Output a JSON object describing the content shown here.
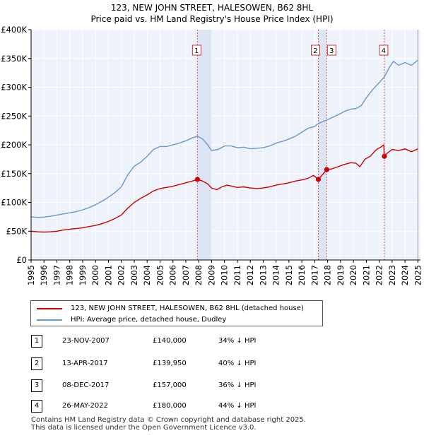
{
  "chart_data": {
    "type": "line",
    "title": "123, NEW JOHN STREET, HALESOWEN, B62 8HL",
    "subtitle": "Price paid vs. HM Land Registry's House Price Index (HPI)",
    "xlim": [
      1995,
      2025.2
    ],
    "ylim": [
      0,
      400000
    ],
    "y_ticks": [
      {
        "value": 0,
        "label": "£0"
      },
      {
        "value": 50000,
        "label": "£50K"
      },
      {
        "value": 100000,
        "label": "£100K"
      },
      {
        "value": 150000,
        "label": "£150K"
      },
      {
        "value": 200000,
        "label": "£200K"
      },
      {
        "value": 250000,
        "label": "£250K"
      },
      {
        "value": 300000,
        "label": "£300K"
      },
      {
        "value": 350000,
        "label": "£350K"
      },
      {
        "value": 400000,
        "label": "£400K"
      }
    ],
    "x_ticks": [
      "1995",
      "1996",
      "1997",
      "1998",
      "1999",
      "2000",
      "2001",
      "2002",
      "2003",
      "2004",
      "2005",
      "2006",
      "2007",
      "2008",
      "2009",
      "2010",
      "2011",
      "2012",
      "2013",
      "2014",
      "2015",
      "2016",
      "2017",
      "2018",
      "2019",
      "2020",
      "2021",
      "2022",
      "2023",
      "2024",
      "2025"
    ],
    "grid": true,
    "shaded_regions": [
      [
        2007.9,
        2009.0
      ],
      [
        2017.28,
        2017.93
      ]
    ],
    "sales": [
      {
        "label": "1",
        "x": 2007.9,
        "y": 140000
      },
      {
        "label": "2",
        "x": 2017.28,
        "y": 139950
      },
      {
        "label": "3",
        "x": 2017.93,
        "y": 157000
      },
      {
        "label": "4",
        "x": 2022.4,
        "y": 180000
      }
    ],
    "series": [
      {
        "name": "123, NEW JOHN STREET, HALESOWEN, B62 8HL (detached house)",
        "color": "#cc0000",
        "points": [
          [
            1995,
            50000
          ],
          [
            1995.5,
            49000
          ],
          [
            1996,
            48500
          ],
          [
            1996.5,
            49000
          ],
          [
            1997,
            50000
          ],
          [
            1997.5,
            52000
          ],
          [
            1998,
            53500
          ],
          [
            1998.5,
            54500
          ],
          [
            1999,
            56000
          ],
          [
            1999.5,
            58000
          ],
          [
            2000,
            60000
          ],
          [
            2000.5,
            63000
          ],
          [
            2001,
            67000
          ],
          [
            2001.5,
            72000
          ],
          [
            2002,
            78000
          ],
          [
            2002.5,
            90000
          ],
          [
            2003,
            100000
          ],
          [
            2003.5,
            107000
          ],
          [
            2004,
            113000
          ],
          [
            2004.5,
            120000
          ],
          [
            2005,
            124000
          ],
          [
            2005.5,
            126000
          ],
          [
            2006,
            128000
          ],
          [
            2006.5,
            131000
          ],
          [
            2007,
            134000
          ],
          [
            2007.5,
            137000
          ],
          [
            2007.9,
            140000
          ],
          [
            2008.3,
            137000
          ],
          [
            2008.7,
            132000
          ],
          [
            2009,
            125000
          ],
          [
            2009.4,
            122000
          ],
          [
            2009.8,
            127000
          ],
          [
            2010.2,
            130000
          ],
          [
            2010.6,
            128000
          ],
          [
            2011,
            126000
          ],
          [
            2011.5,
            127000
          ],
          [
            2012,
            125000
          ],
          [
            2012.5,
            124000
          ],
          [
            2013,
            125000
          ],
          [
            2013.5,
            127000
          ],
          [
            2014,
            130000
          ],
          [
            2014.5,
            132000
          ],
          [
            2015,
            134000
          ],
          [
            2015.5,
            137000
          ],
          [
            2016,
            139000
          ],
          [
            2016.5,
            142000
          ],
          [
            2016.9,
            147000
          ],
          [
            2017.28,
            139950
          ],
          [
            2017.6,
            148000
          ],
          [
            2017.93,
            157000
          ],
          [
            2018.3,
            158000
          ],
          [
            2018.8,
            162000
          ],
          [
            2019.3,
            166000
          ],
          [
            2019.8,
            169000
          ],
          [
            2020.2,
            168000
          ],
          [
            2020.5,
            162000
          ],
          [
            2020.9,
            175000
          ],
          [
            2021.3,
            180000
          ],
          [
            2021.8,
            192000
          ],
          [
            2022.2,
            197000
          ],
          [
            2022.35,
            200000
          ],
          [
            2022.4,
            180000
          ],
          [
            2022.6,
            185000
          ],
          [
            2023,
            192000
          ],
          [
            2023.5,
            190000
          ],
          [
            2024,
            193000
          ],
          [
            2024.5,
            188000
          ],
          [
            2025,
            193000
          ]
        ]
      },
      {
        "name": "HPI: Average price, detached house, Dudley",
        "color": "#6699cc",
        "points": [
          [
            1995,
            75000
          ],
          [
            1995.5,
            74000
          ],
          [
            1996,
            74500
          ],
          [
            1996.5,
            76000
          ],
          [
            1997,
            78000
          ],
          [
            1997.5,
            80000
          ],
          [
            1998,
            82000
          ],
          [
            1998.5,
            84000
          ],
          [
            1999,
            87000
          ],
          [
            1999.5,
            91000
          ],
          [
            2000,
            96000
          ],
          [
            2000.5,
            102000
          ],
          [
            2001,
            109000
          ],
          [
            2001.5,
            117000
          ],
          [
            2002,
            127000
          ],
          [
            2002.5,
            148000
          ],
          [
            2003,
            163000
          ],
          [
            2003.5,
            170000
          ],
          [
            2004,
            180000
          ],
          [
            2004.5,
            192000
          ],
          [
            2005,
            197000
          ],
          [
            2005.5,
            197000
          ],
          [
            2006,
            200000
          ],
          [
            2006.5,
            203000
          ],
          [
            2007,
            207000
          ],
          [
            2007.5,
            212000
          ],
          [
            2007.9,
            215000
          ],
          [
            2008.3,
            210000
          ],
          [
            2008.7,
            200000
          ],
          [
            2009,
            190000
          ],
          [
            2009.5,
            192000
          ],
          [
            2010,
            198000
          ],
          [
            2010.5,
            198000
          ],
          [
            2011,
            195000
          ],
          [
            2011.5,
            196000
          ],
          [
            2012,
            193000
          ],
          [
            2012.5,
            194000
          ],
          [
            2013,
            195000
          ],
          [
            2013.5,
            198000
          ],
          [
            2014,
            203000
          ],
          [
            2014.5,
            206000
          ],
          [
            2015,
            210000
          ],
          [
            2015.5,
            215000
          ],
          [
            2016,
            222000
          ],
          [
            2016.5,
            229000
          ],
          [
            2017,
            232000
          ],
          [
            2017.28,
            237000
          ],
          [
            2017.6,
            240000
          ],
          [
            2017.93,
            243000
          ],
          [
            2018.3,
            247000
          ],
          [
            2018.8,
            252000
          ],
          [
            2019.3,
            258000
          ],
          [
            2019.8,
            262000
          ],
          [
            2020.2,
            263000
          ],
          [
            2020.6,
            268000
          ],
          [
            2021,
            282000
          ],
          [
            2021.5,
            296000
          ],
          [
            2022,
            308000
          ],
          [
            2022.4,
            318000
          ],
          [
            2022.8,
            335000
          ],
          [
            2023.1,
            345000
          ],
          [
            2023.5,
            338000
          ],
          [
            2024,
            343000
          ],
          [
            2024.5,
            338000
          ],
          [
            2025,
            347000
          ]
        ]
      }
    ]
  },
  "legend": {
    "property_label": "123, NEW JOHN STREET, HALESOWEN, B62 8HL (detached house)",
    "hpi_label": "HPI: Average price, detached house, Dudley"
  },
  "sales_table": [
    {
      "num": "1",
      "date": "23-NOV-2007",
      "price": "£140,000",
      "hpi": "34% ↓ HPI"
    },
    {
      "num": "2",
      "date": "13-APR-2017",
      "price": "£139,950",
      "hpi": "40% ↓ HPI"
    },
    {
      "num": "3",
      "date": "08-DEC-2017",
      "price": "£157,000",
      "hpi": "36% ↓ HPI"
    },
    {
      "num": "4",
      "date": "26-MAY-2022",
      "price": "£180,000",
      "hpi": "44% ↓ HPI"
    }
  ],
  "footer": {
    "line1": "Contains HM Land Registry data © Crown copyright and database right 2025.",
    "line2": "This data is licensed under the Open Government Licence v3.0."
  }
}
